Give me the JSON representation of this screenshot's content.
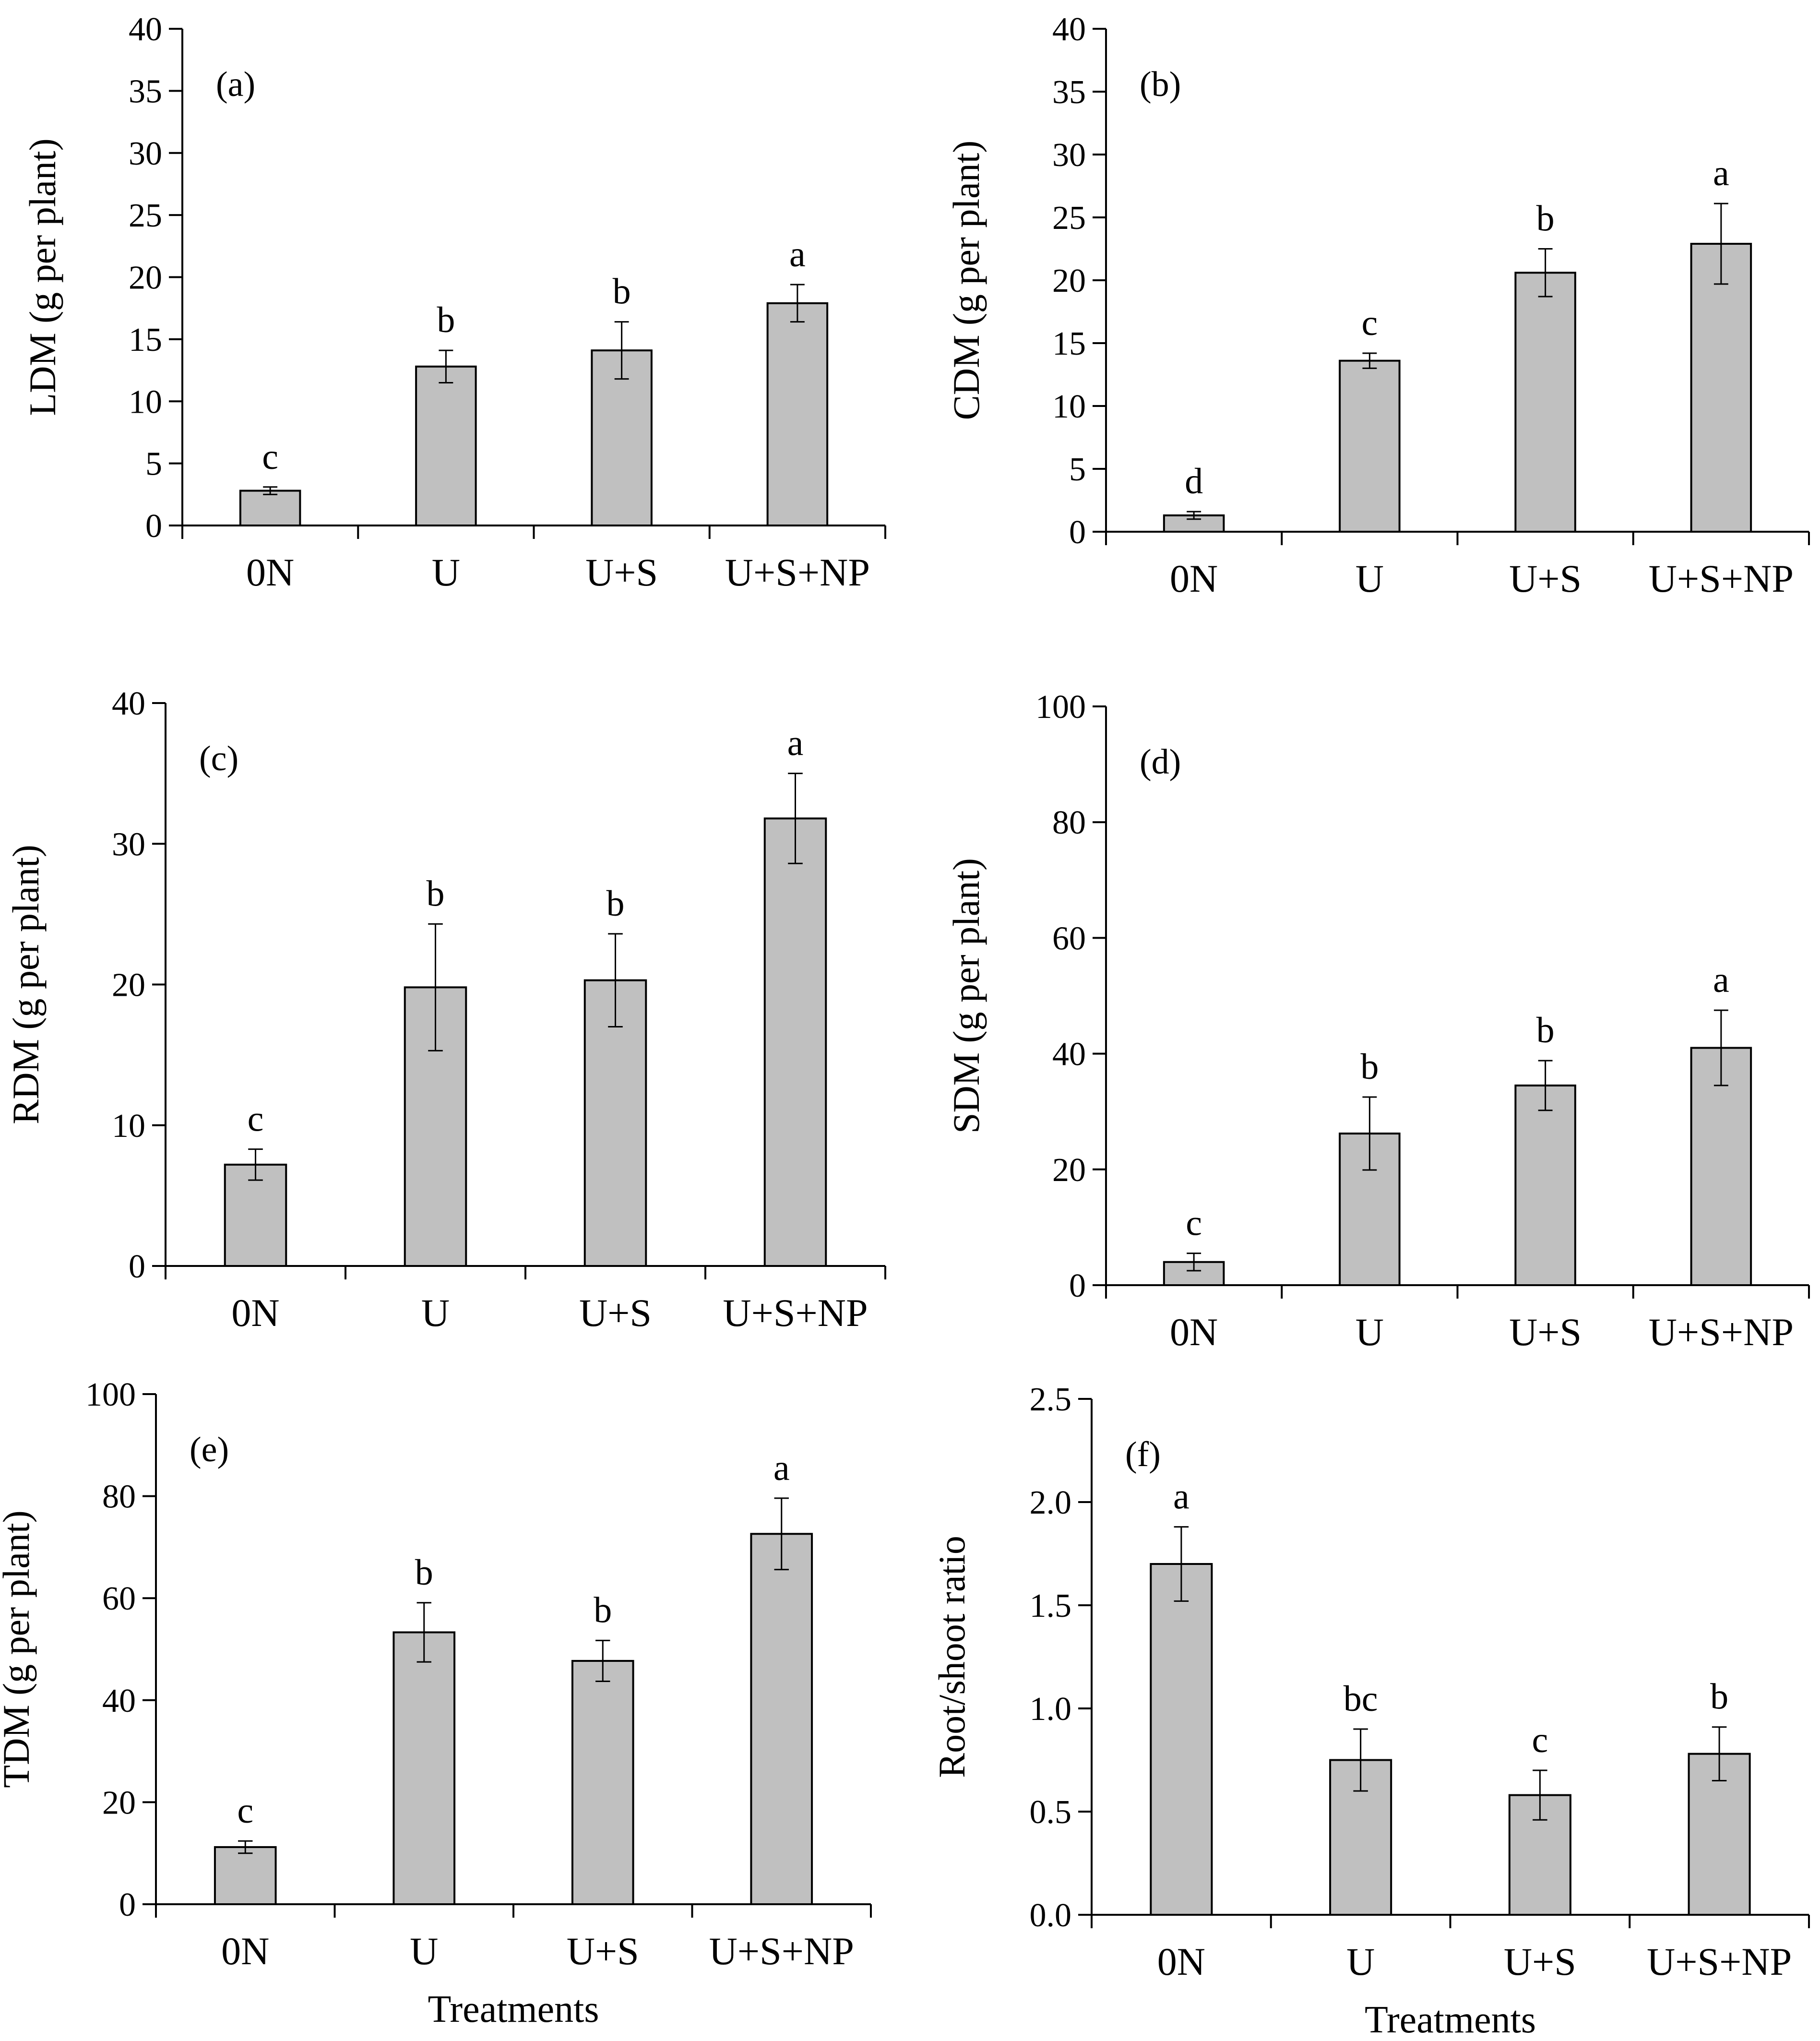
{
  "chart_data": [
    {
      "panel": "(a)",
      "type": "bar",
      "categories": [
        "0N",
        "U",
        "U+S",
        "U+S+NP"
      ],
      "values": [
        2.8,
        12.8,
        14.1,
        17.9
      ],
      "errors": [
        0.3,
        1.3,
        2.3,
        1.5
      ],
      "letters": [
        "c",
        "b",
        "b",
        "a"
      ],
      "ylabel": "LDM (g per plant)",
      "xlabel": "",
      "ylim": [
        0,
        40
      ],
      "yticks": [
        "0",
        "5",
        "10",
        "15",
        "20",
        "25",
        "30",
        "35",
        "40"
      ]
    },
    {
      "panel": "(b)",
      "type": "bar",
      "categories": [
        "0N",
        "U",
        "U+S",
        "U+S+NP"
      ],
      "values": [
        1.3,
        13.6,
        20.6,
        22.9
      ],
      "errors": [
        0.3,
        0.6,
        1.9,
        3.2
      ],
      "letters": [
        "d",
        "c",
        "b",
        "a"
      ],
      "ylabel": "CDM (g per plant)",
      "xlabel": "",
      "ylim": [
        0,
        40
      ],
      "yticks": [
        "0",
        "5",
        "10",
        "15",
        "20",
        "25",
        "30",
        "35",
        "40"
      ]
    },
    {
      "panel": "(c)",
      "type": "bar",
      "categories": [
        "0N",
        "U",
        "U+S",
        "U+S+NP"
      ],
      "values": [
        7.2,
        19.8,
        20.3,
        31.8
      ],
      "errors": [
        1.1,
        4.5,
        3.3,
        3.2
      ],
      "letters": [
        "c",
        "b",
        "b",
        "a"
      ],
      "ylabel": "RDM (g per plant)",
      "xlabel": "",
      "ylim": [
        0,
        40
      ],
      "yticks": [
        "0",
        "10",
        "20",
        "30",
        "40"
      ]
    },
    {
      "panel": "(d)",
      "type": "bar",
      "categories": [
        "0N",
        "U",
        "U+S",
        "U+S+NP"
      ],
      "values": [
        4.0,
        26.2,
        34.5,
        41.0
      ],
      "errors": [
        1.5,
        6.3,
        4.3,
        6.5
      ],
      "letters": [
        "c",
        "b",
        "b",
        "a"
      ],
      "ylabel": "SDM (g per plant)",
      "xlabel": "",
      "ylim": [
        0,
        100
      ],
      "yticks": [
        "0",
        "20",
        "40",
        "60",
        "80",
        "100"
      ]
    },
    {
      "panel": "(e)",
      "type": "bar",
      "categories": [
        "0N",
        "U",
        "U+S",
        "U+S+NP"
      ],
      "values": [
        11.2,
        53.3,
        47.7,
        72.6
      ],
      "errors": [
        1.2,
        5.8,
        4.0,
        7.0
      ],
      "letters": [
        "c",
        "b",
        "b",
        "a"
      ],
      "ylabel": "TDM (g per plant)",
      "xlabel": "Treatments",
      "ylim": [
        0,
        100
      ],
      "yticks": [
        "0",
        "20",
        "40",
        "60",
        "80",
        "100"
      ]
    },
    {
      "panel": "(f)",
      "type": "bar",
      "categories": [
        "0N",
        "U",
        "U+S",
        "U+S+NP"
      ],
      "values": [
        1.7,
        0.75,
        0.58,
        0.78
      ],
      "errors": [
        0.18,
        0.15,
        0.12,
        0.13
      ],
      "letters": [
        "a",
        "bc",
        "c",
        "b"
      ],
      "ylabel": "Root/shoot ratio",
      "xlabel": "Treatments",
      "ylim": [
        0,
        2.5
      ],
      "yticks": [
        "0.0",
        "0.5",
        "1.0",
        "1.5",
        "2.0",
        "2.5"
      ]
    }
  ],
  "colors": {
    "bar_fill": "#c0c0c0",
    "bar_stroke": "#000000",
    "axis": "#000000"
  }
}
